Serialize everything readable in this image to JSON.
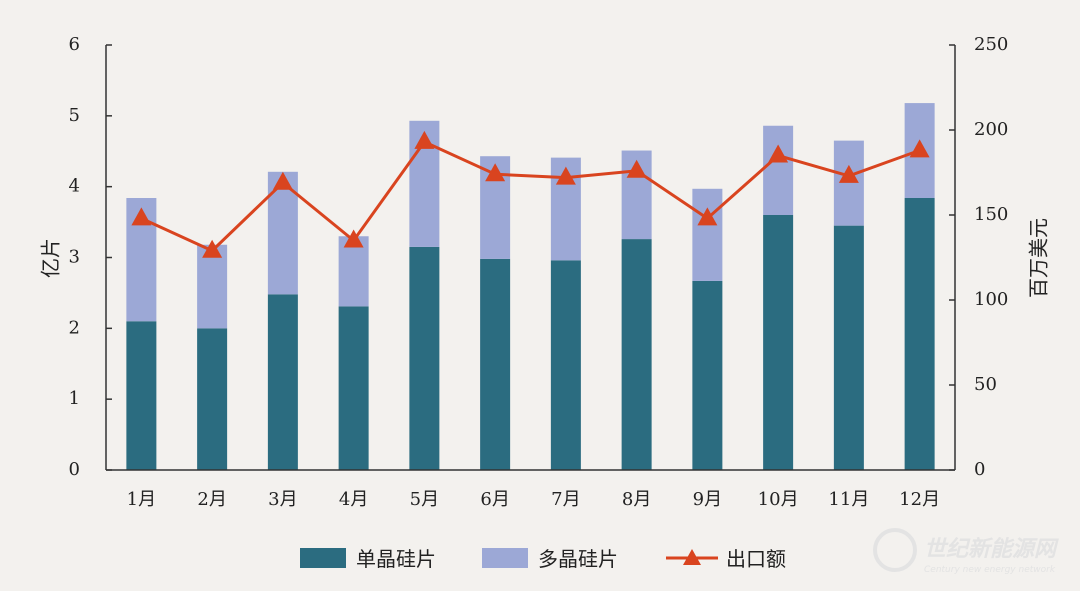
{
  "chart_data": {
    "type": "bar",
    "stacked": true,
    "categories": [
      "1月",
      "2月",
      "3月",
      "4月",
      "5月",
      "6月",
      "7月",
      "8月",
      "9月",
      "10月",
      "11月",
      "12月"
    ],
    "series": [
      {
        "name": "单晶硅片",
        "axis": "left",
        "color": "#2b6c80",
        "values": [
          2.1,
          2.0,
          2.48,
          2.31,
          3.15,
          2.98,
          2.96,
          3.26,
          2.67,
          3.6,
          3.45,
          3.84
        ]
      },
      {
        "name": "多晶硅片",
        "axis": "left",
        "color": "#9ca8d6",
        "values": [
          1.74,
          1.18,
          1.73,
          0.99,
          1.78,
          1.45,
          1.45,
          1.25,
          1.3,
          1.26,
          1.2,
          1.34
        ]
      },
      {
        "name": "出口额",
        "axis": "right",
        "type": "line",
        "color": "#d9441f",
        "marker": "triangle",
        "values": [
          148,
          129,
          169,
          135,
          193,
          174,
          172,
          176,
          148,
          185,
          173,
          188
        ]
      }
    ],
    "ylabel": "亿片",
    "ylabel_right": "百万美元",
    "ylim": [
      0,
      6
    ],
    "yticks": [
      "0",
      "1",
      "2",
      "3",
      "4",
      "5",
      "6"
    ],
    "ylim_right": [
      0,
      250
    ],
    "yticks_right": [
      "0",
      "50",
      "100",
      "150",
      "200",
      "250"
    ],
    "grid": false,
    "legend": "bottom"
  },
  "watermark": {
    "text_cn": "世纪新能源网",
    "text_en": "Century new energy network"
  }
}
